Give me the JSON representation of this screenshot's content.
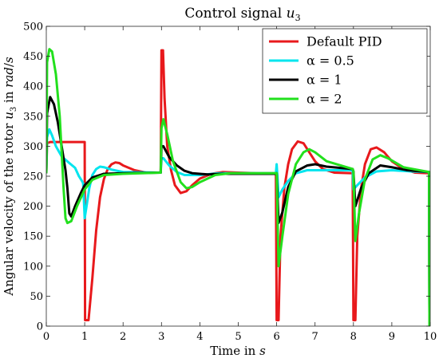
{
  "chart_data": {
    "type": "line",
    "title": "Control signal u_3",
    "xlabel": "Time in s",
    "ylabel": "Angular velocity of the rotor u_3 in rad/s",
    "xlim": [
      0,
      10
    ],
    "ylim": [
      0,
      500
    ],
    "x_ticks": [
      0,
      1,
      2,
      3,
      4,
      5,
      6,
      7,
      8,
      9,
      10
    ],
    "y_ticks": [
      0,
      50,
      100,
      150,
      200,
      250,
      300,
      350,
      400,
      450,
      500
    ],
    "grid": false,
    "legend_position": "top-right",
    "series": [
      {
        "name": "Default PID",
        "color": "#e8191c",
        "points": [
          [
            0,
            255
          ],
          [
            0.02,
            305
          ],
          [
            0.1,
            307
          ],
          [
            1.0,
            307
          ],
          [
            1.01,
            10
          ],
          [
            1.1,
            10
          ],
          [
            1.2,
            80
          ],
          [
            1.3,
            160
          ],
          [
            1.4,
            215
          ],
          [
            1.5,
            245
          ],
          [
            1.6,
            262
          ],
          [
            1.7,
            270
          ],
          [
            1.8,
            273
          ],
          [
            1.9,
            272
          ],
          [
            2.0,
            268
          ],
          [
            2.3,
            260
          ],
          [
            2.6,
            256
          ],
          [
            2.98,
            256
          ],
          [
            3.0,
            460
          ],
          [
            3.04,
            460
          ],
          [
            3.08,
            380
          ],
          [
            3.15,
            300
          ],
          [
            3.25,
            260
          ],
          [
            3.35,
            235
          ],
          [
            3.5,
            222
          ],
          [
            3.65,
            225
          ],
          [
            3.8,
            235
          ],
          [
            4.0,
            246
          ],
          [
            4.3,
            254
          ],
          [
            4.6,
            257
          ],
          [
            5.0,
            256
          ],
          [
            5.5,
            255
          ],
          [
            5.98,
            255
          ],
          [
            6.0,
            10
          ],
          [
            6.05,
            10
          ],
          [
            6.1,
            150
          ],
          [
            6.2,
            230
          ],
          [
            6.3,
            270
          ],
          [
            6.4,
            295
          ],
          [
            6.55,
            308
          ],
          [
            6.7,
            305
          ],
          [
            6.85,
            290
          ],
          [
            7.0,
            275
          ],
          [
            7.2,
            262
          ],
          [
            7.5,
            256
          ],
          [
            7.98,
            255
          ],
          [
            8.0,
            10
          ],
          [
            8.05,
            10
          ],
          [
            8.1,
            150
          ],
          [
            8.2,
            230
          ],
          [
            8.3,
            270
          ],
          [
            8.45,
            295
          ],
          [
            8.6,
            298
          ],
          [
            8.8,
            290
          ],
          [
            9.0,
            275
          ],
          [
            9.3,
            262
          ],
          [
            9.6,
            256
          ],
          [
            9.97,
            255
          ],
          [
            9.98,
            0
          ]
        ]
      },
      {
        "name": "α = 0.5",
        "color": "#00e5ee",
        "points": [
          [
            0,
            255
          ],
          [
            0.02,
            315
          ],
          [
            0.08,
            328
          ],
          [
            0.15,
            318
          ],
          [
            0.25,
            300
          ],
          [
            0.4,
            283
          ],
          [
            0.6,
            272
          ],
          [
            0.75,
            264
          ],
          [
            0.85,
            250
          ],
          [
            0.93,
            242
          ],
          [
            0.96,
            238
          ],
          [
            1.0,
            180
          ],
          [
            1.06,
            205
          ],
          [
            1.12,
            230
          ],
          [
            1.2,
            252
          ],
          [
            1.3,
            262
          ],
          [
            1.4,
            266
          ],
          [
            1.5,
            265
          ],
          [
            1.7,
            261
          ],
          [
            2.0,
            257
          ],
          [
            2.98,
            256
          ],
          [
            3.0,
            280
          ],
          [
            3.05,
            280
          ],
          [
            3.2,
            268
          ],
          [
            3.4,
            257
          ],
          [
            3.6,
            252
          ],
          [
            4.0,
            252
          ],
          [
            4.5,
            255
          ],
          [
            5.98,
            255
          ],
          [
            6.0,
            270
          ],
          [
            6.02,
            250
          ],
          [
            6.05,
            215
          ],
          [
            6.15,
            228
          ],
          [
            6.3,
            242
          ],
          [
            6.5,
            255
          ],
          [
            6.8,
            260
          ],
          [
            7.2,
            260
          ],
          [
            7.98,
            260
          ],
          [
            8.0,
            228
          ],
          [
            8.1,
            235
          ],
          [
            8.3,
            248
          ],
          [
            8.6,
            258
          ],
          [
            9.0,
            260
          ],
          [
            9.5,
            258
          ],
          [
            9.97,
            257
          ],
          [
            9.98,
            0
          ]
        ]
      },
      {
        "name": "α = 1",
        "color": "#000000",
        "points": [
          [
            0,
            255
          ],
          [
            0.02,
            355
          ],
          [
            0.1,
            382
          ],
          [
            0.2,
            370
          ],
          [
            0.3,
            340
          ],
          [
            0.4,
            300
          ],
          [
            0.5,
            260
          ],
          [
            0.55,
            230
          ],
          [
            0.6,
            188
          ],
          [
            0.65,
            183
          ],
          [
            0.75,
            200
          ],
          [
            0.9,
            222
          ],
          [
            1.0,
            235
          ],
          [
            1.2,
            248
          ],
          [
            1.5,
            254
          ],
          [
            2.0,
            255
          ],
          [
            2.98,
            256
          ],
          [
            3.0,
            300
          ],
          [
            3.05,
            300
          ],
          [
            3.2,
            282
          ],
          [
            3.4,
            268
          ],
          [
            3.6,
            259
          ],
          [
            3.8,
            255
          ],
          [
            4.2,
            253
          ],
          [
            4.6,
            254
          ],
          [
            5.2,
            254
          ],
          [
            5.98,
            254
          ],
          [
            6.0,
            255
          ],
          [
            6.05,
            172
          ],
          [
            6.15,
            190
          ],
          [
            6.3,
            232
          ],
          [
            6.5,
            258
          ],
          [
            6.8,
            268
          ],
          [
            7.0,
            270
          ],
          [
            7.3,
            266
          ],
          [
            7.98,
            262
          ],
          [
            8.0,
            258
          ],
          [
            8.05,
            200
          ],
          [
            8.2,
            230
          ],
          [
            8.4,
            255
          ],
          [
            8.7,
            268
          ],
          [
            9.0,
            265
          ],
          [
            9.4,
            260
          ],
          [
            9.97,
            257
          ],
          [
            9.98,
            0
          ]
        ]
      },
      {
        "name": "α = 2",
        "color": "#22e01d",
        "points": [
          [
            0,
            255
          ],
          [
            0.02,
            440
          ],
          [
            0.08,
            462
          ],
          [
            0.15,
            458
          ],
          [
            0.25,
            420
          ],
          [
            0.35,
            350
          ],
          [
            0.4,
            290
          ],
          [
            0.45,
            230
          ],
          [
            0.5,
            180
          ],
          [
            0.55,
            172
          ],
          [
            0.65,
            175
          ],
          [
            0.8,
            200
          ],
          [
            1.0,
            228
          ],
          [
            1.2,
            244
          ],
          [
            1.5,
            252
          ],
          [
            2.0,
            254
          ],
          [
            2.98,
            256
          ],
          [
            3.0,
            330
          ],
          [
            3.05,
            345
          ],
          [
            3.15,
            320
          ],
          [
            3.3,
            275
          ],
          [
            3.5,
            240
          ],
          [
            3.65,
            230
          ],
          [
            3.8,
            232
          ],
          [
            4.0,
            240
          ],
          [
            4.4,
            252
          ],
          [
            4.8,
            255
          ],
          [
            5.98,
            255
          ],
          [
            6.0,
            255
          ],
          [
            6.05,
            100
          ],
          [
            6.15,
            150
          ],
          [
            6.3,
            220
          ],
          [
            6.5,
            270
          ],
          [
            6.7,
            290
          ],
          [
            6.85,
            295
          ],
          [
            7.0,
            290
          ],
          [
            7.3,
            275
          ],
          [
            7.98,
            262
          ],
          [
            8.0,
            258
          ],
          [
            8.05,
            142
          ],
          [
            8.15,
            190
          ],
          [
            8.3,
            245
          ],
          [
            8.5,
            278
          ],
          [
            8.7,
            285
          ],
          [
            8.9,
            280
          ],
          [
            9.3,
            265
          ],
          [
            9.97,
            257
          ],
          [
            9.98,
            0
          ]
        ]
      }
    ]
  }
}
